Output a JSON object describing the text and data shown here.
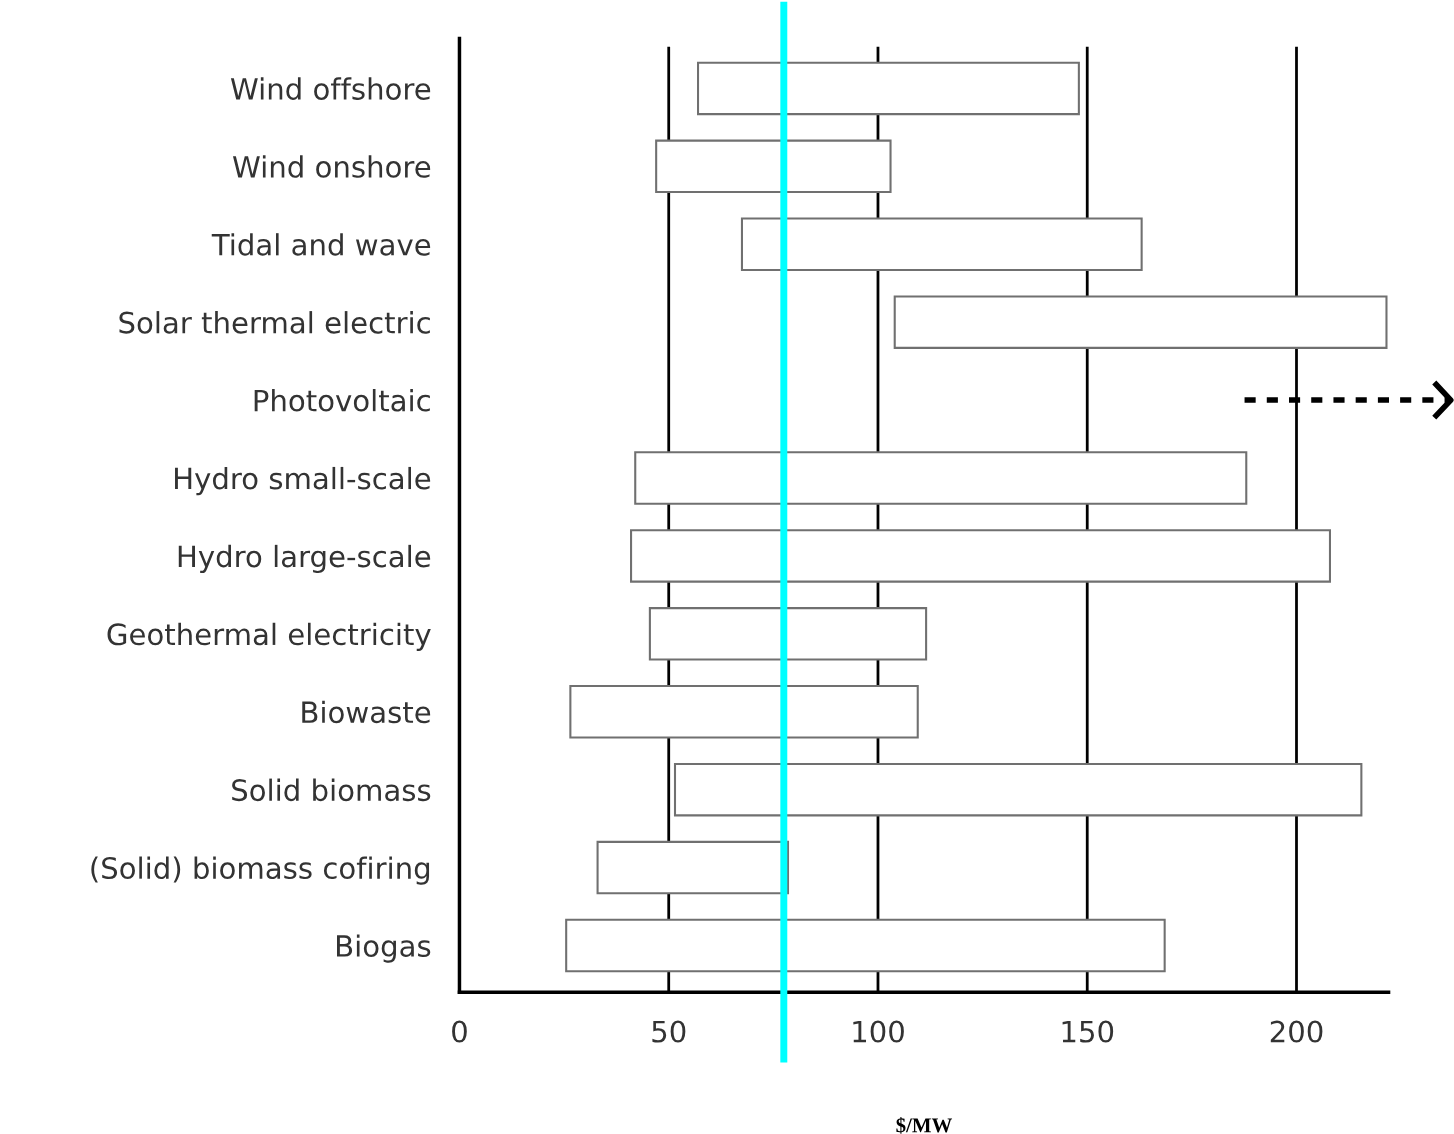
{
  "chart_data": {
    "type": "bar",
    "orientation": "horizontal",
    "xlabel": "$/MW",
    "categories": [
      "Wind offshore",
      "Wind onshore",
      "Tidal and wave",
      "Solar thermal electric",
      "Photovoltaic",
      "Hydro small-scale",
      "Hydro large-scale",
      "Geothermal electricity",
      "Biowaste",
      "Solid biomass",
      "(Solid) biomass cofiring",
      "Biogas"
    ],
    "base": [
      57,
      47,
      67.5,
      104,
      null,
      42,
      41,
      45.5,
      26.5,
      51.5,
      33,
      25.5
    ],
    "values": [
      91,
      56,
      95.5,
      117.5,
      null,
      146,
      167,
      66,
      83,
      164,
      45.5,
      143
    ],
    "color": "#ffffff",
    "xlim": [
      0,
      222
    ],
    "xticks": [
      0,
      50,
      100,
      150,
      200
    ],
    "grid": "x",
    "ref_lines": [
      {
        "axis": "x",
        "value": 77.5,
        "color": "#00ffff"
      }
    ]
  }
}
